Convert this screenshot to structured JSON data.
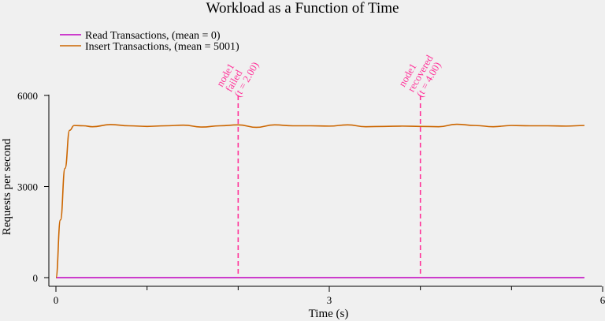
{
  "chart_data": {
    "type": "line",
    "title": "Workload as a Function of Time",
    "xlabel": "Time (s)",
    "ylabel": "Requests per second",
    "xlim": [
      0,
      6
    ],
    "ylim": [
      -300,
      6000
    ],
    "x_ticks": [
      0,
      3,
      6
    ],
    "x_minor_ticks": [
      1,
      2,
      4,
      5
    ],
    "y_ticks": [
      0,
      3000,
      6000
    ],
    "grid": false,
    "legend_position": "top-left",
    "series": [
      {
        "name": "Read Transactions, (mean = 0)",
        "color": "#c000c0",
        "x": [
          0,
          0.5,
          1,
          1.5,
          2,
          2.5,
          3,
          3.5,
          4,
          4.5,
          5,
          5.5,
          5.8
        ],
        "y": [
          0,
          0,
          0,
          0,
          0,
          0,
          0,
          0,
          0,
          0,
          0,
          0,
          0
        ]
      },
      {
        "name": "Insert Transactions, (mean = 5001)",
        "color": "#cc6600",
        "x": [
          0,
          0.05,
          0.1,
          0.15,
          0.2,
          0.3,
          0.4,
          0.6,
          0.8,
          1.0,
          1.2,
          1.4,
          1.6,
          1.8,
          2.0,
          2.2,
          2.4,
          2.6,
          2.8,
          3.0,
          3.2,
          3.4,
          3.6,
          3.8,
          4.0,
          4.2,
          4.4,
          4.6,
          4.8,
          5.0,
          5.2,
          5.4,
          5.6,
          5.8
        ],
        "y": [
          0,
          1900,
          3600,
          4850,
          5010,
          5000,
          4970,
          5040,
          5000,
          4980,
          5000,
          5020,
          4960,
          5000,
          5030,
          4950,
          5030,
          5000,
          5000,
          4990,
          5030,
          4970,
          4980,
          4990,
          4980,
          4970,
          5050,
          5010,
          4970,
          5010,
          5000,
          5000,
          4990,
          5010
        ]
      }
    ],
    "annotations": [
      {
        "x": 2.0,
        "color": "#ff3399",
        "lines": [
          "node1",
          "failed",
          "(t = 2.00)"
        ]
      },
      {
        "x": 4.0,
        "color": "#ff3399",
        "lines": [
          "node1",
          "recovered",
          "(t = 4.00)"
        ]
      }
    ]
  }
}
